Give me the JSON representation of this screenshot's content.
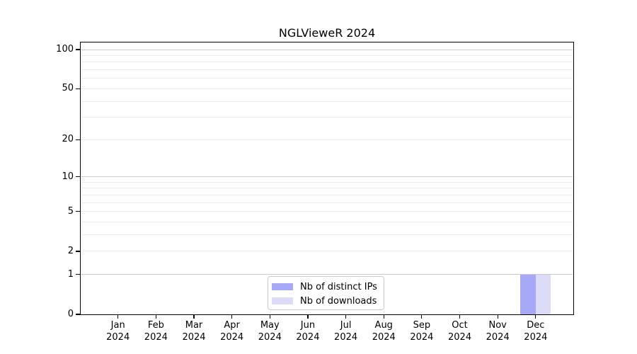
{
  "title": "NGLVieweR 2024",
  "chart_data": {
    "type": "bar",
    "title": "NGLVieweR 2024",
    "categories": [
      {
        "month": "Jan",
        "year": "2024"
      },
      {
        "month": "Feb",
        "year": "2024"
      },
      {
        "month": "Mar",
        "year": "2024"
      },
      {
        "month": "Apr",
        "year": "2024"
      },
      {
        "month": "May",
        "year": "2024"
      },
      {
        "month": "Jun",
        "year": "2024"
      },
      {
        "month": "Jul",
        "year": "2024"
      },
      {
        "month": "Aug",
        "year": "2024"
      },
      {
        "month": "Sep",
        "year": "2024"
      },
      {
        "month": "Oct",
        "year": "2024"
      },
      {
        "month": "Nov",
        "year": "2024"
      },
      {
        "month": "Dec",
        "year": "2024"
      }
    ],
    "series": [
      {
        "name": "Nb of distinct IPs",
        "color": "#a8a8f8",
        "values": [
          0,
          0,
          0,
          0,
          0,
          0,
          0,
          0,
          0,
          0,
          0,
          1
        ]
      },
      {
        "name": "Nb of downloads",
        "color": "#dcdcf8",
        "values": [
          0,
          0,
          0,
          0,
          0,
          0,
          0,
          0,
          0,
          0,
          0,
          1
        ]
      }
    ],
    "xlabel": "",
    "ylabel": "",
    "yscale": "log1p",
    "ylim": [
      0,
      114
    ],
    "y_ticks": [
      0,
      1,
      2,
      5,
      10,
      20,
      50,
      100
    ],
    "y_tick_labels": [
      "0",
      "1",
      "2",
      "5",
      "10",
      "20",
      "50",
      "100"
    ],
    "grid": "horizontal",
    "grid_major_values": [
      1,
      10,
      100
    ],
    "grid_minor_values": [
      2,
      3,
      4,
      5,
      6,
      7,
      8,
      9,
      20,
      30,
      40,
      50,
      60,
      70,
      80,
      90
    ],
    "grid_major_color": "#c9c9c9",
    "grid_minor_color": "#ececec",
    "legend_position": "bottom-center",
    "axis_color": "#000000",
    "background_color": "#ffffff"
  }
}
